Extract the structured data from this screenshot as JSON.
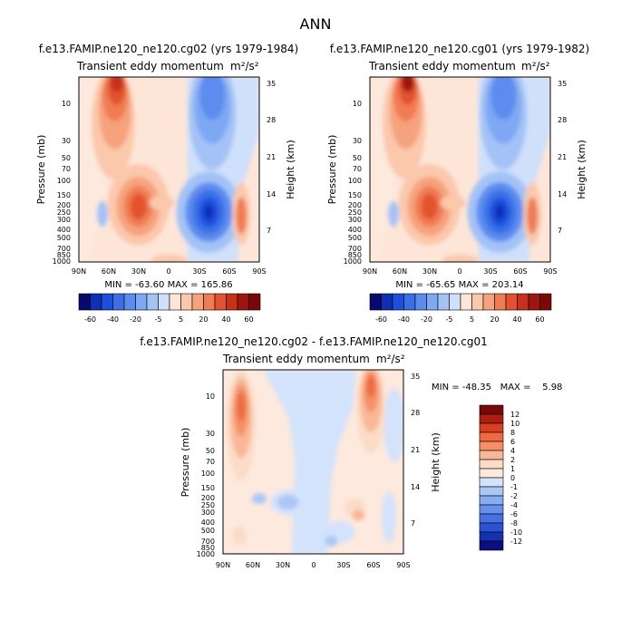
{
  "chart_data": {
    "type": "heatmap",
    "title": "ANN",
    "panels": [
      {
        "id": "top-left",
        "title": "f.e13.FAMIP.ne120_ne120.cg02 (yrs 1979-1984)",
        "subtitle": "Transient eddy momentum",
        "units": "m²/s²",
        "ylabel": "Pressure (mb)",
        "y2label": "Height (km)",
        "xticks": [
          "90N",
          "60N",
          "30N",
          "0",
          "30S",
          "60S",
          "90S"
        ],
        "yticks": [
          "10",
          "30",
          "50",
          "70",
          "100",
          "150",
          "200",
          "250",
          "300",
          "400",
          "500",
          "700",
          "850",
          "1000"
        ],
        "y2ticks": [
          "35",
          "28",
          "21",
          "14",
          "7"
        ],
        "stats_text": "MIN = -63.60   MAX = 165.86",
        "min": -63.6,
        "max": 165.86,
        "colorbar_ticks": [
          "-60",
          "-40",
          "-20",
          "-5",
          "5",
          "20",
          "40",
          "60"
        ]
      },
      {
        "id": "top-right",
        "title": "f.e13.FAMIP.ne120_ne120.cg01 (yrs 1979-1982)",
        "subtitle": "Transient eddy momentum",
        "units": "m²/s²",
        "ylabel": "Pressure (mb)",
        "y2label": "Height (km)",
        "xticks": [
          "90N",
          "60N",
          "30N",
          "0",
          "30S",
          "60S",
          "90S"
        ],
        "yticks": [
          "10",
          "30",
          "50",
          "70",
          "100",
          "150",
          "200",
          "250",
          "300",
          "400",
          "500",
          "700",
          "850",
          "1000"
        ],
        "y2ticks": [
          "35",
          "28",
          "21",
          "14",
          "7"
        ],
        "stats_text": "MIN = -65.65   MAX = 203.14",
        "min": -65.65,
        "max": 203.14,
        "colorbar_ticks": [
          "-60",
          "-40",
          "-20",
          "-5",
          "5",
          "20",
          "40",
          "60"
        ]
      },
      {
        "id": "bottom-diff",
        "title": "f.e13.FAMIP.ne120_ne120.cg02 - f.e13.FAMIP.ne120_ne120.cg01",
        "subtitle": "Transient eddy momentum",
        "units": "m²/s²",
        "ylabel": "Pressure (mb)",
        "y2label": "Height (km)",
        "xticks": [
          "90N",
          "60N",
          "30N",
          "0",
          "30S",
          "60S",
          "90S"
        ],
        "yticks": [
          "10",
          "30",
          "50",
          "70",
          "100",
          "150",
          "200",
          "250",
          "300",
          "400",
          "500",
          "700",
          "850",
          "1000"
        ],
        "y2ticks": [
          "35",
          "28",
          "21",
          "14",
          "7"
        ],
        "stats_text": "MIN = -48.35   MAX =    5.98",
        "min": -48.35,
        "max": 5.98,
        "colorbar_ticks": [
          "12",
          "10",
          "8",
          "6",
          "4",
          "2",
          "1",
          "0",
          "-1",
          "-2",
          "-4",
          "-6",
          "-8",
          "-10",
          "-12"
        ]
      }
    ],
    "colors": {
      "main_scale": [
        "#08086e",
        "#0f2fb4",
        "#1c50dc",
        "#3a6fe8",
        "#5b8cef",
        "#7ea8f3",
        "#a3c2f6",
        "#cfe0fa",
        "#fde6d8",
        "#fbc8ac",
        "#f6a27c",
        "#f07c52",
        "#e2522d",
        "#c8301a",
        "#a01410",
        "#7a0808"
      ],
      "diff_scale": [
        "#7a0808",
        "#b01c10",
        "#d8401f",
        "#ef6a3f",
        "#f59066",
        "#f8b796",
        "#fbdcc6",
        "#fde9dd",
        "#d3e3fb",
        "#aac8f7",
        "#86adf2",
        "#6690ec",
        "#4572e3",
        "#2a52d4",
        "#1331b3",
        "#0a0f82"
      ]
    }
  }
}
